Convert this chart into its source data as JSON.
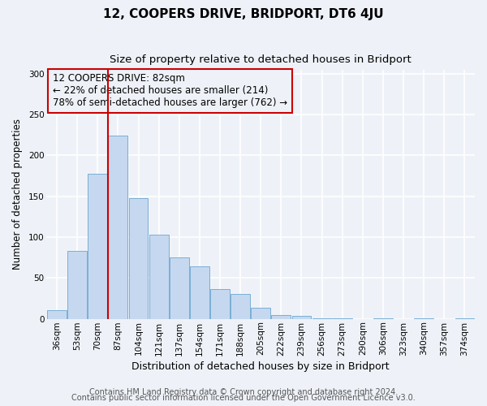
{
  "title": "12, COOPERS DRIVE, BRIDPORT, DT6 4JU",
  "subtitle": "Size of property relative to detached houses in Bridport",
  "xlabel": "Distribution of detached houses by size in Bridport",
  "ylabel": "Number of detached properties",
  "bar_labels": [
    "36sqm",
    "53sqm",
    "70sqm",
    "87sqm",
    "104sqm",
    "121sqm",
    "137sqm",
    "154sqm",
    "171sqm",
    "188sqm",
    "205sqm",
    "222sqm",
    "239sqm",
    "256sqm",
    "273sqm",
    "290sqm",
    "306sqm",
    "323sqm",
    "340sqm",
    "357sqm",
    "374sqm"
  ],
  "bar_values": [
    11,
    83,
    178,
    224,
    148,
    103,
    75,
    64,
    36,
    30,
    14,
    5,
    4,
    1,
    1,
    0,
    1,
    0,
    1,
    0,
    1
  ],
  "bar_color": "#c5d8f0",
  "bar_edgecolor": "#7aafd4",
  "vline_color": "#cc0000",
  "annotation_box_text": "12 COOPERS DRIVE: 82sqm\n← 22% of detached houses are smaller (214)\n78% of semi-detached houses are larger (762) →",
  "annotation_box_color": "#cc0000",
  "annotation_fontsize": 8.5,
  "ylim": [
    0,
    305
  ],
  "yticks": [
    0,
    50,
    100,
    150,
    200,
    250,
    300
  ],
  "footer_line1": "Contains HM Land Registry data © Crown copyright and database right 2024.",
  "footer_line2": "Contains public sector information licensed under the Open Government Licence v3.0.",
  "background_color": "#eef2f8",
  "grid_color": "#ffffff",
  "title_fontsize": 11,
  "subtitle_fontsize": 9.5,
  "xlabel_fontsize": 9,
  "ylabel_fontsize": 8.5,
  "tick_fontsize": 7.5,
  "footer_fontsize": 7
}
